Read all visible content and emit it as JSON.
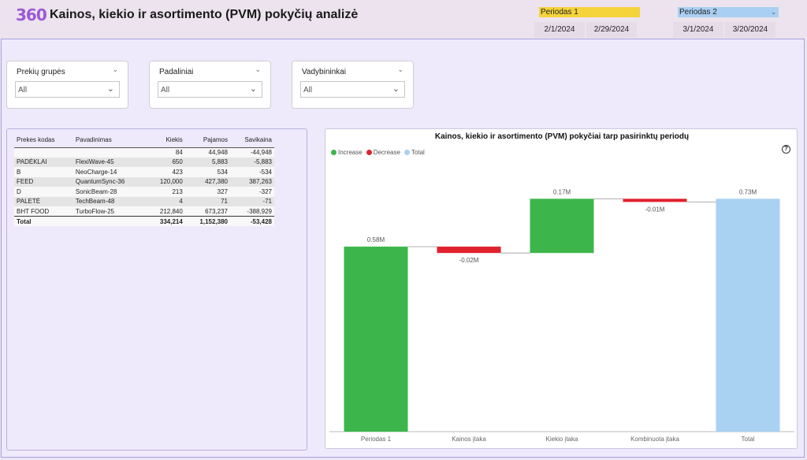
{
  "header": {
    "logo": "360",
    "title": "Kainos, kiekio ir asortimento (PVM) pokyčių analizė"
  },
  "period1": {
    "label": "Periodas 1",
    "start": "2/1/2024",
    "end": "2/29/2024"
  },
  "period2": {
    "label": "Periodas 2",
    "start": "3/1/2024",
    "end": "3/20/2024"
  },
  "slicers": [
    {
      "title": "Prekių grupės",
      "value": "All"
    },
    {
      "title": "Padaliniai",
      "value": "All"
    },
    {
      "title": "Vadybininkai",
      "value": "All"
    }
  ],
  "table": {
    "columns": [
      "Prekes kodas",
      "Pavadinimas",
      "Kiekis",
      "Pajamos",
      "Savikaina"
    ],
    "rows": [
      [
        "",
        "",
        "84",
        "44,948",
        "-44,948"
      ],
      [
        "PADĖKLAI",
        "FlexiWave-45",
        "650",
        "5,883",
        "-5,883"
      ],
      [
        "B",
        "NeoCharge-14",
        "423",
        "534",
        "-534"
      ],
      [
        "FEED",
        "QuantumSync-36",
        "120,000",
        "427,380",
        "387,263"
      ],
      [
        "D",
        "SonicBeam-28",
        "213",
        "327",
        "-327"
      ],
      [
        "PALETĖ",
        "TechBeam-48",
        "4",
        "71",
        "-71"
      ],
      [
        "BHT FOOD",
        "TurboFlow-25",
        "212,840",
        "673,237",
        "-388,929"
      ]
    ],
    "total": [
      "Total",
      "",
      "334,214",
      "1,152,380",
      "-53,428"
    ]
  },
  "chart_data": {
    "type": "waterfall",
    "title": "Kainos, kiekio ir asortimento (PVM) pokyčiai tarp pasirinktų periodų",
    "legend": [
      "Increase",
      "Decrease",
      "Total"
    ],
    "legend_position": "top-left",
    "colors": {
      "increase": "#3cb64a",
      "decrease": "#e0212e",
      "total": "#a8d1f2"
    },
    "categories": [
      "Periodas 1",
      "Kainos įtaka",
      "Kiekio įtaka",
      "Kombinuota įtaka",
      "Total"
    ],
    "values": [
      0.58,
      -0.02,
      0.17,
      -0.01,
      0.73
    ],
    "kinds": [
      "increase",
      "decrease",
      "increase",
      "decrease",
      "total"
    ],
    "labels": [
      "0.58M",
      "-0.02M",
      "0.17M",
      "-0.01M",
      "0.73M"
    ],
    "unit": "M",
    "ylim": [
      0,
      0.8
    ]
  }
}
